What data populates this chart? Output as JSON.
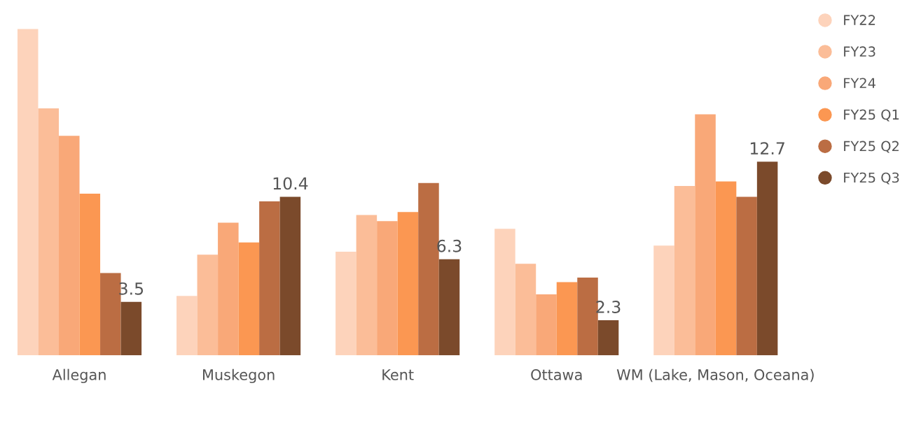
{
  "chart_data": {
    "type": "bar",
    "categories": [
      "Allegan",
      "Muskegon",
      "Kent",
      "Ottawa",
      "WM (Lake, Mason, Oceana)"
    ],
    "series": [
      {
        "name": "FY22",
        "color": "#fdd3bb",
        "values": [
          21.4,
          3.9,
          6.8,
          8.3,
          7.2
        ]
      },
      {
        "name": "FY23",
        "color": "#fbbd98",
        "values": [
          16.2,
          6.6,
          9.2,
          6.0,
          11.1
        ]
      },
      {
        "name": "FY24",
        "color": "#f9a878",
        "values": [
          14.4,
          8.7,
          8.8,
          4.0,
          15.8
        ]
      },
      {
        "name": "FY25 Q1",
        "color": "#fb9752",
        "values": [
          10.6,
          7.4,
          9.4,
          4.8,
          11.4
        ]
      },
      {
        "name": "FY25 Q2",
        "color": "#bb6d43",
        "values": [
          5.4,
          10.1,
          11.3,
          5.1,
          10.4
        ]
      },
      {
        "name": "FY25 Q3",
        "color": "#7b4a2b",
        "values": [
          3.5,
          10.4,
          6.3,
          2.3,
          12.7
        ],
        "value_labels": [
          "3.5",
          "10.4",
          "6.3",
          "2.3",
          "12.7"
        ]
      }
    ],
    "legend": "top right",
    "grid": false,
    "tick_labels": "x"
  }
}
